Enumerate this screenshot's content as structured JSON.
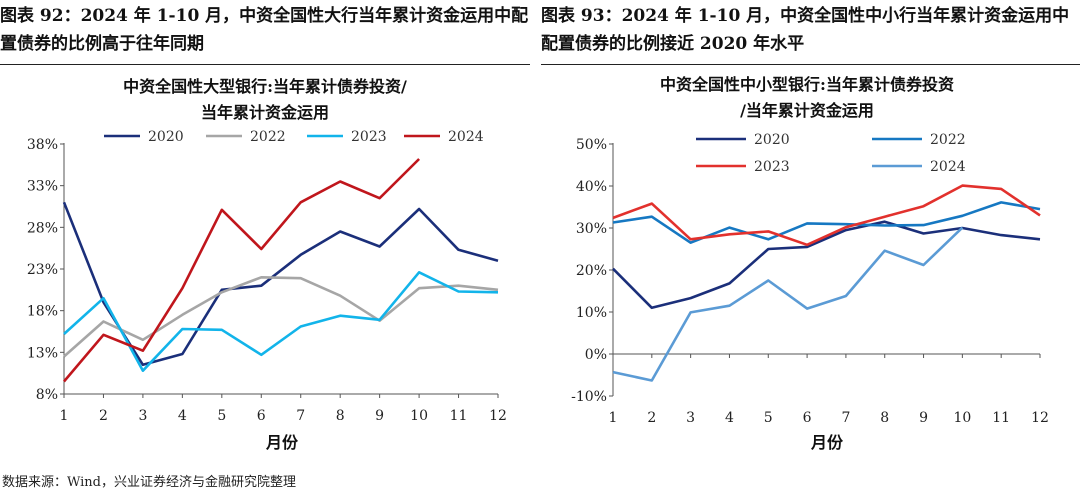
{
  "figures": {
    "left_title": "图表 92：2024 年 1-10 月，中资全国性大行当年累计资金运用中配置债券的比例高于往年同期",
    "right_title": "图表 93：2024 年 1-10 月，中资全国性中小行当年累计资金运用中配置债券的比例接近 2020 年水平"
  },
  "source": "数据来源：Wind，兴业证券经济与金融研究院整理",
  "chart_data": [
    {
      "type": "line",
      "title_lines": [
        "中资全国性大型银行:当年累计债券投资/",
        "当年累计资金运用"
      ],
      "xlabel": "月份",
      "ylabel": "",
      "x": [
        1,
        2,
        3,
        4,
        5,
        6,
        7,
        8,
        9,
        10,
        11,
        12
      ],
      "x_ticks": [
        "1",
        "2",
        "3",
        "4",
        "5",
        "6",
        "7",
        "8",
        "9",
        "10",
        "11",
        "12"
      ],
      "ylim": [
        8,
        38
      ],
      "y_ticks": [
        8,
        13,
        18,
        23,
        28,
        33,
        38
      ],
      "y_tick_labels": [
        "8%",
        "13%",
        "18%",
        "23%",
        "28%",
        "33%",
        "38%"
      ],
      "grid": false,
      "legend_layout": "one row above plot",
      "series": [
        {
          "name": "2020",
          "color": "#1b2f7a",
          "values": [
            31,
            19,
            11.5,
            12.8,
            20.5,
            21,
            24.7,
            27.5,
            25.7,
            30.2,
            25.3,
            24
          ]
        },
        {
          "name": "2022",
          "color": "#a6a6a6",
          "values": [
            12.5,
            16.7,
            14.5,
            17.5,
            20.2,
            22,
            21.9,
            19.8,
            16.8,
            20.7,
            21,
            20.5
          ]
        },
        {
          "name": "2023",
          "color": "#12b4ea",
          "values": [
            15.2,
            19.5,
            10.8,
            15.8,
            15.7,
            12.7,
            16.1,
            17.4,
            16.9,
            22.6,
            20.3,
            20.2
          ]
        },
        {
          "name": "2024",
          "color": "#c0161c",
          "values": [
            9.5,
            15.1,
            13.2,
            20.7,
            30.1,
            25.4,
            31,
            33.5,
            31.5,
            36.2,
            null,
            null
          ]
        }
      ]
    },
    {
      "type": "line",
      "title_lines": [
        "中资全国性中小型银行:当年累计债券投资",
        "/当年累计资金运用"
      ],
      "xlabel": "月份",
      "ylabel": "",
      "x": [
        1,
        2,
        3,
        4,
        5,
        6,
        7,
        8,
        9,
        10,
        11,
        12
      ],
      "x_ticks": [
        "1",
        "2",
        "3",
        "4",
        "5",
        "6",
        "7",
        "8",
        "9",
        "10",
        "11",
        "12"
      ],
      "ylim": [
        -10,
        50
      ],
      "y_ticks": [
        -10,
        0,
        10,
        20,
        30,
        40,
        50
      ],
      "y_tick_labels": [
        "-10%",
        "0%",
        "10%",
        "20%",
        "30%",
        "40%",
        "50%"
      ],
      "grid": false,
      "legend_layout": "two rows above plot",
      "series": [
        {
          "name": "2020",
          "color": "#1b2f7a",
          "values": [
            20.3,
            11,
            13.3,
            16.8,
            25,
            25.5,
            29.5,
            31.5,
            28.7,
            30,
            28.3,
            27.3
          ]
        },
        {
          "name": "2022",
          "color": "#1678c2",
          "values": [
            31.3,
            32.7,
            26.5,
            30.1,
            27.3,
            31.1,
            30.9,
            30.6,
            30.7,
            32.9,
            36.1,
            34.5
          ]
        },
        {
          "name": "2023",
          "color": "#e2312d",
          "values": [
            32.4,
            35.8,
            27.3,
            28.5,
            29.2,
            26,
            30.2,
            32.7,
            35.2,
            40.1,
            39.3,
            33
          ]
        },
        {
          "name": "2024",
          "color": "#5b9bd5",
          "values": [
            -4.3,
            -6.3,
            9.9,
            11.5,
            17.5,
            10.8,
            13.8,
            24.6,
            21.2,
            30.1,
            null,
            null
          ]
        }
      ]
    }
  ]
}
